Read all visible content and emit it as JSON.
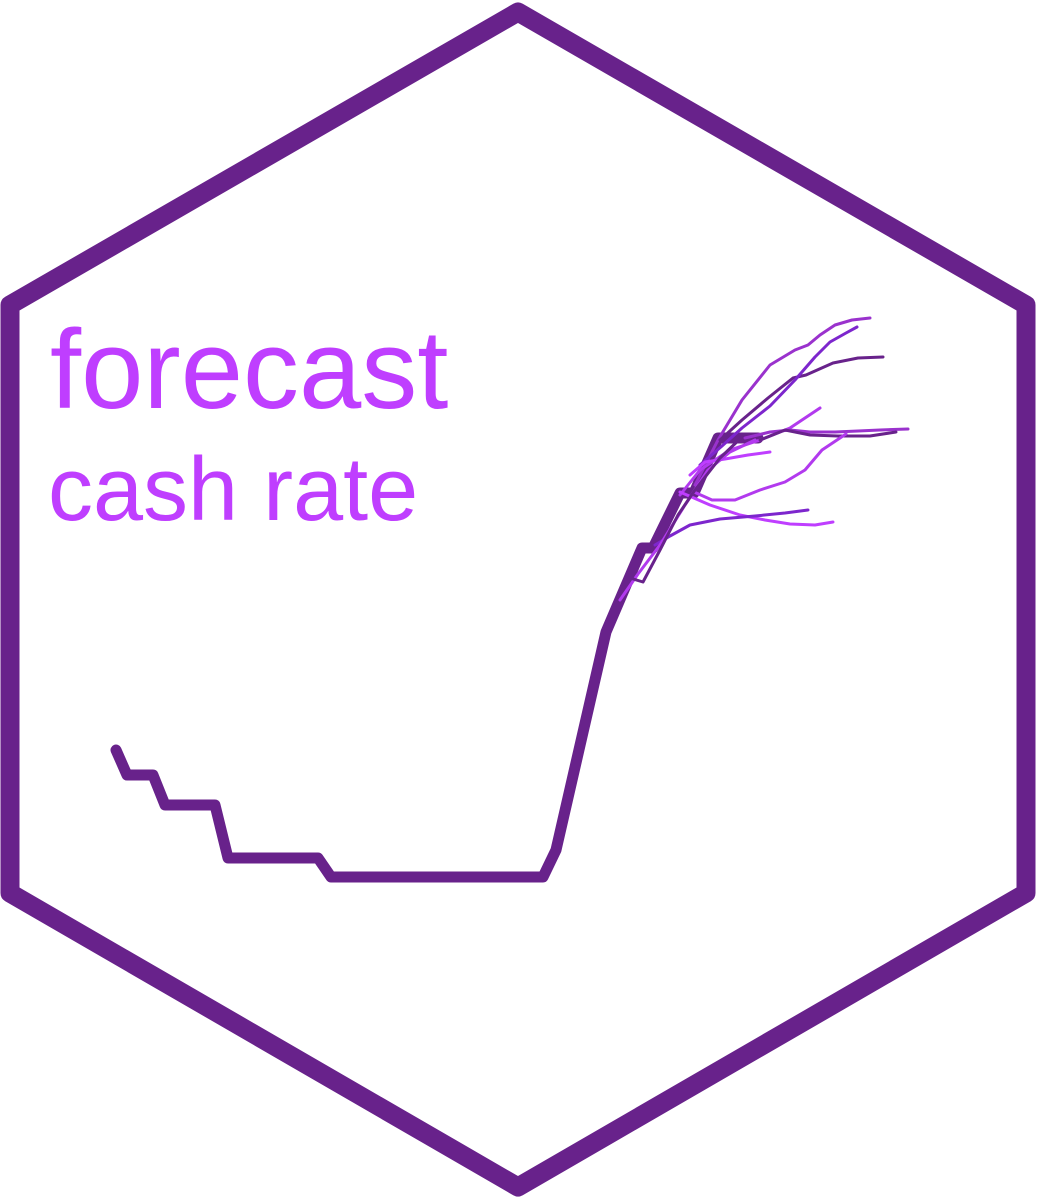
{
  "logo": {
    "title_line1": "forecast",
    "title_line2": "cash rate",
    "colors": {
      "border": "#68228B",
      "history_line": "#68228B",
      "title": "#BF3EFF",
      "forecast_paths": [
        "#9A32CD",
        "#B23AEE",
        "#68228B",
        "#BF3EFF",
        "#7D26CD"
      ]
    },
    "icon": "hexagon-sticker"
  }
}
